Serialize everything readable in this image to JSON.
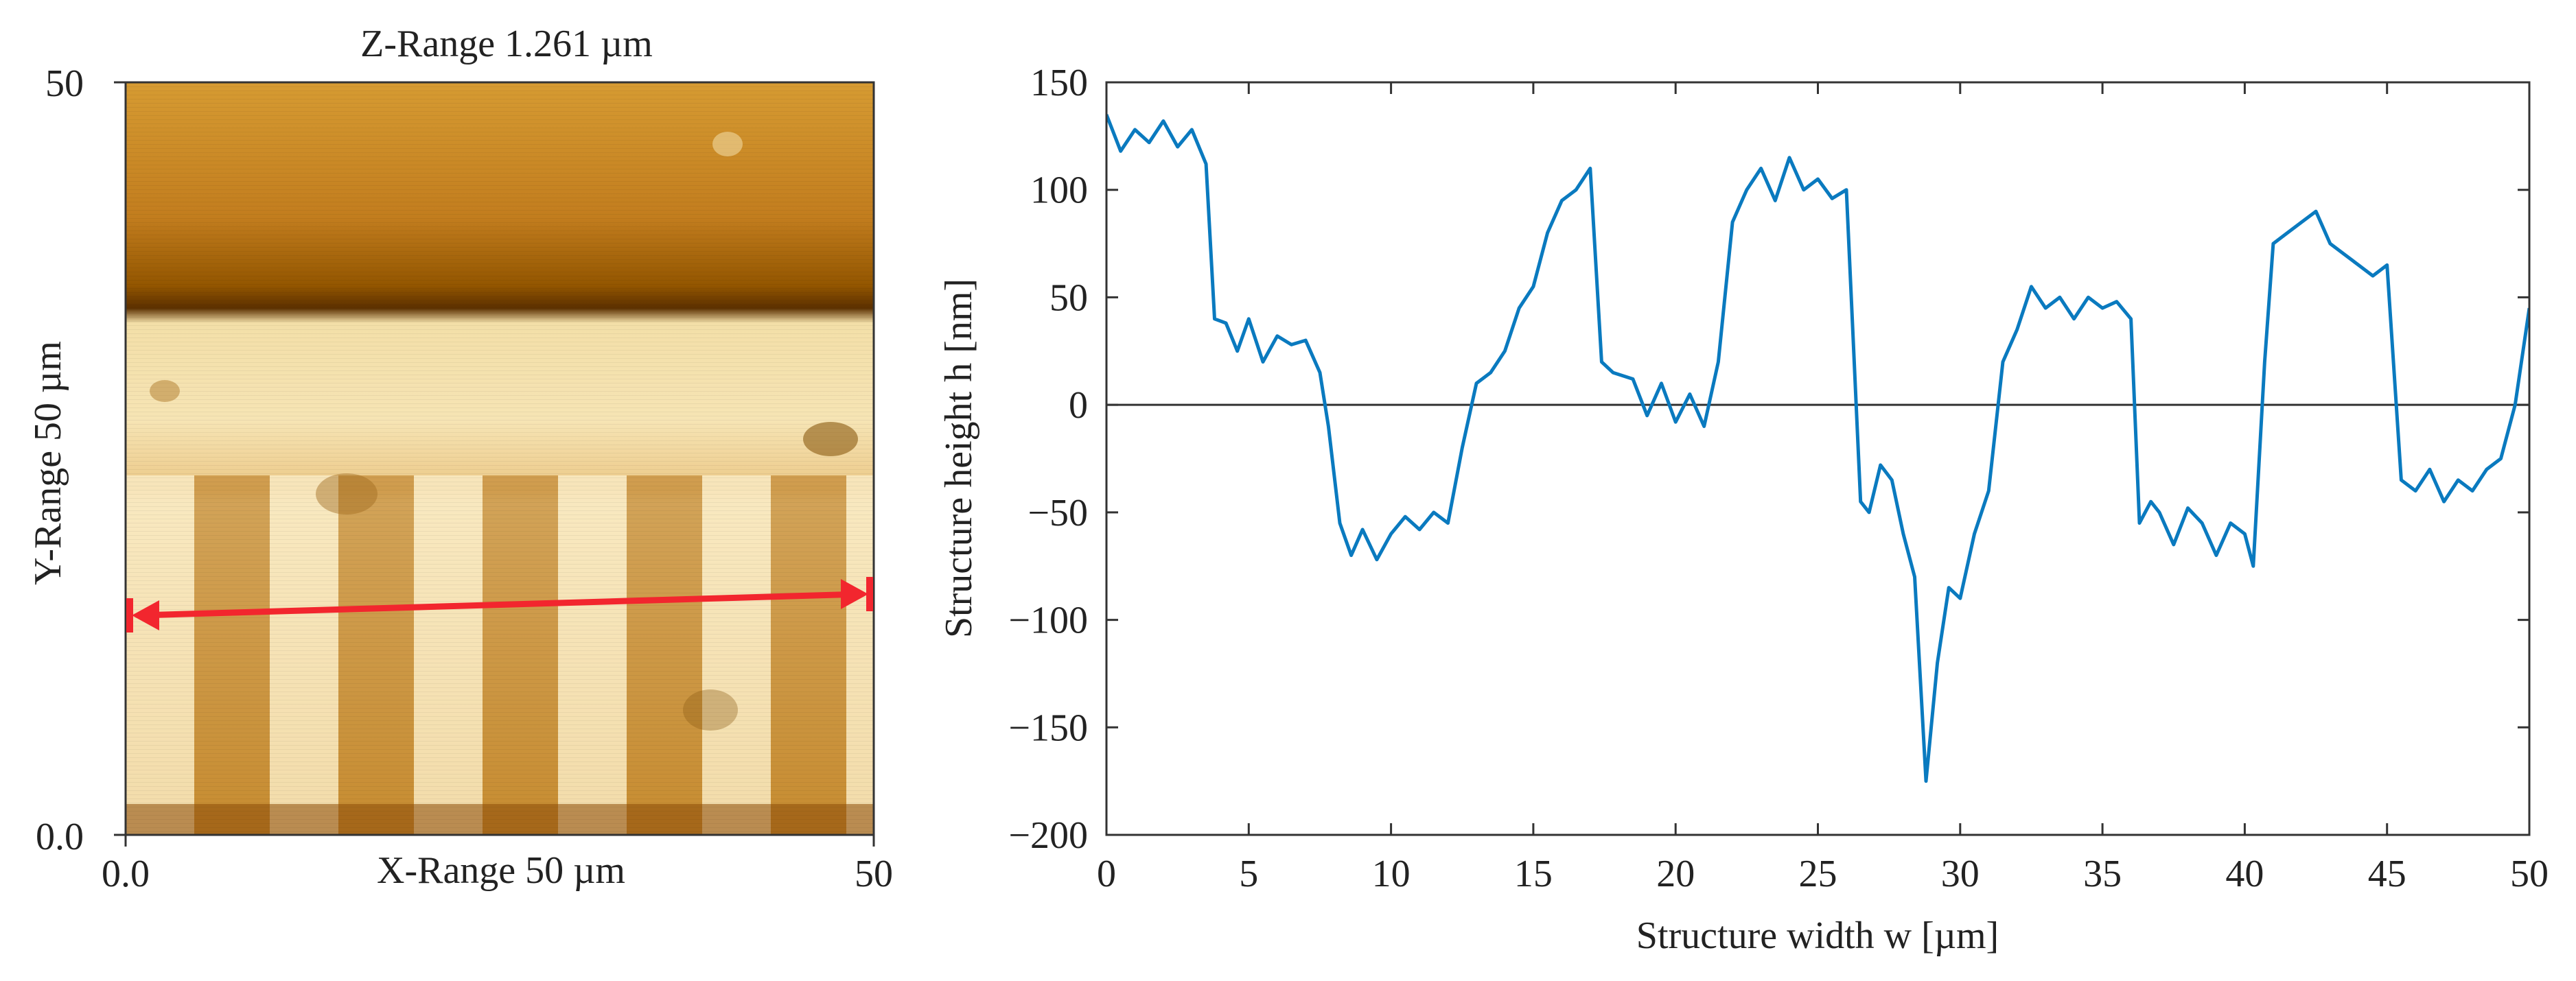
{
  "colors": {
    "line": "#0a7abf",
    "arrow": "#f2262e",
    "zero_line": "#333333",
    "afm_light": "#fbeccb",
    "afm_mid": "#d9a540",
    "afm_dark": "#7a4200"
  },
  "afm_image": {
    "title": "Z-Range 1.261 µm",
    "xlabel": "X-Range 50 µm",
    "ylabel": "Y-Range 50 µm",
    "x_ticks": [
      "0.0",
      "50"
    ],
    "y_ticks": [
      "50",
      "0.0"
    ],
    "xlim": [
      0,
      50
    ],
    "ylim": [
      0,
      50
    ],
    "profile_arrow_y": 15
  },
  "chart_data": [
    {
      "type": "line",
      "title": "",
      "xlabel": "Structure width w [µm]",
      "ylabel": "Structure height h [nm]",
      "xlim": [
        0,
        50
      ],
      "ylim": [
        -200,
        150
      ],
      "x_ticks": [
        0,
        5,
        10,
        15,
        20,
        25,
        30,
        35,
        40,
        45,
        50
      ],
      "y_ticks": [
        150,
        100,
        50,
        0,
        -50,
        -100,
        -150,
        -200
      ],
      "grid": false,
      "reference_line_y": 0,
      "series": [
        {
          "x": [
            0,
            0.5,
            1,
            1.5,
            2,
            2.5,
            3,
            3.5,
            3.8,
            4.2,
            4.6,
            5,
            5.5,
            6,
            6.5,
            7,
            7.5,
            7.8,
            8.2,
            8.6,
            9,
            9.5,
            10,
            10.5,
            11,
            11.5,
            12,
            12.5,
            13,
            13.5,
            14,
            14.5,
            15,
            15.5,
            16,
            16.5,
            17,
            17.4,
            17.8,
            18.5,
            19,
            19.5,
            20,
            20.5,
            21,
            21.5,
            22,
            22.5,
            23,
            23.5,
            24,
            24.5,
            25,
            25.5,
            26,
            26.5,
            26.8,
            27.2,
            27.6,
            28,
            28.4,
            28.8,
            29.2,
            29.6,
            30,
            30.5,
            31,
            31.5,
            32,
            32.5,
            33,
            33.5,
            34,
            34.5,
            35,
            35.5,
            36,
            36.3,
            36.7,
            37,
            37.5,
            38,
            38.5,
            39,
            39.5,
            40,
            40.3,
            40.7,
            41,
            41.5,
            42,
            42.5,
            43,
            43.5,
            44,
            44.5,
            45,
            45.5,
            46,
            46.5,
            47,
            47.5,
            48,
            48.5,
            49,
            49.5,
            50
          ],
          "values": [
            135,
            118,
            128,
            122,
            132,
            120,
            128,
            112,
            40,
            38,
            25,
            40,
            20,
            32,
            28,
            30,
            15,
            -10,
            -55,
            -70,
            -58,
            -72,
            -60,
            -52,
            -58,
            -50,
            -55,
            -20,
            10,
            15,
            25,
            45,
            55,
            80,
            95,
            100,
            110,
            20,
            15,
            12,
            -5,
            10,
            -8,
            5,
            -10,
            20,
            85,
            100,
            110,
            95,
            115,
            100,
            105,
            96,
            100,
            -45,
            -50,
            -28,
            -35,
            -60,
            -80,
            -175,
            -120,
            -85,
            -90,
            -60,
            -40,
            20,
            35,
            55,
            45,
            50,
            40,
            50,
            45,
            48,
            40,
            -55,
            -45,
            -50,
            -65,
            -48,
            -55,
            -70,
            -55,
            -60,
            -75,
            20,
            75,
            80,
            85,
            90,
            75,
            70,
            65,
            60,
            65,
            -35,
            -40,
            -30,
            -45,
            -35,
            -40,
            -30,
            -25,
            0,
            45
          ]
        }
      ]
    }
  ]
}
